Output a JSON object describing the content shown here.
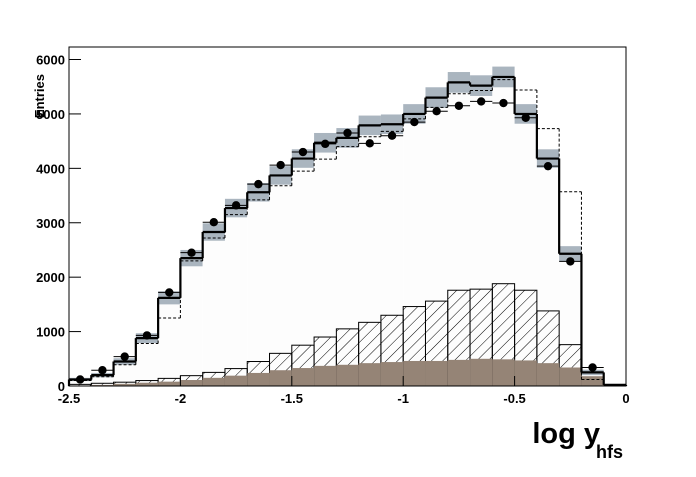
{
  "chart_data": {
    "type": "histogram",
    "y_label": "Entries",
    "x_label": "log y",
    "x_label_sub": "hfs",
    "bins": [
      -2.5,
      -2.4,
      -2.3,
      -2.2,
      -2.1,
      -2.0,
      -1.9,
      -1.8,
      -1.7,
      -1.6,
      -1.5,
      -1.4,
      -1.3,
      -1.2,
      -1.1,
      -1.0,
      -0.9,
      -0.8,
      -0.7,
      -0.6,
      -0.5,
      -0.4,
      -0.3,
      -0.2,
      -0.1,
      0
    ],
    "series": [
      {
        "style": "filled-band",
        "color": "#000000",
        "fill": "#fdfdfd",
        "band_color": "#aab5bf",
        "values": [
          120,
          200,
          450,
          880,
          1620,
          2350,
          2830,
          3270,
          3560,
          3870,
          4180,
          4470,
          4560,
          4790,
          4810,
          5000,
          5300,
          5580,
          5520,
          5680,
          5000,
          4180,
          2430,
          250,
          20
        ],
        "errors": [
          30,
          40,
          60,
          90,
          120,
          150,
          160,
          170,
          170,
          170,
          170,
          180,
          180,
          180,
          180,
          180,
          190,
          190,
          190,
          190,
          180,
          170,
          140,
          50,
          10
        ]
      },
      {
        "style": "hatched",
        "color": "#000000",
        "values": [
          30,
          50,
          70,
          100,
          140,
          190,
          250,
          320,
          450,
          600,
          750,
          900,
          1050,
          1170,
          1300,
          1460,
          1560,
          1760,
          1780,
          1880,
          1760,
          1380,
          760,
          150,
          10
        ]
      },
      {
        "style": "filled",
        "color": "#958476",
        "values": [
          10,
          20,
          40,
          60,
          80,
          110,
          150,
          190,
          240,
          290,
          330,
          370,
          390,
          420,
          440,
          460,
          460,
          480,
          500,
          490,
          470,
          420,
          340,
          180,
          20
        ]
      },
      {
        "style": "dashed",
        "color": "#000000",
        "values": [
          100,
          170,
          390,
          780,
          1250,
          2300,
          2720,
          3150,
          3420,
          3680,
          3950,
          4170,
          4400,
          4580,
          4680,
          4910,
          5120,
          5370,
          5430,
          5630,
          5440,
          4730,
          3570,
          120,
          20
        ]
      },
      {
        "style": "points",
        "color": "#000000",
        "values": [
          120,
          290,
          540,
          930,
          1720,
          2450,
          3010,
          3320,
          3710,
          4060,
          4300,
          4450,
          4650,
          4460,
          4600,
          4850,
          5050,
          5150,
          5230,
          5200,
          4930,
          4040,
          2290,
          340,
          null
        ]
      }
    ],
    "xlim": [
      -2.5,
      0
    ],
    "ylim": [
      0,
      6230
    ],
    "xticks": [
      -2.5,
      -2,
      -1.5,
      -1,
      -0.5,
      0
    ],
    "yticks": [
      0,
      1000,
      2000,
      3000,
      4000,
      5000,
      6000
    ]
  }
}
